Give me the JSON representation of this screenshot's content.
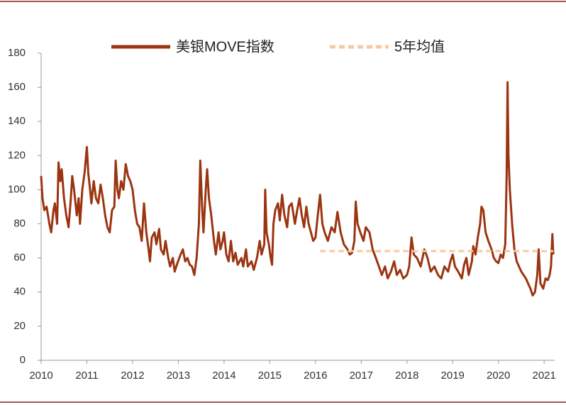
{
  "chart_data": {
    "type": "line",
    "xlim": [
      2010,
      2021.23
    ],
    "xticks": [
      2010,
      2011,
      2012,
      2013,
      2014,
      2015,
      2016,
      2017,
      2018,
      2019,
      2020,
      2021
    ],
    "ylim": [
      0,
      180
    ],
    "yticks": [
      0,
      20,
      40,
      60,
      80,
      100,
      120,
      140,
      160,
      180
    ],
    "legend": "top",
    "series": [
      {
        "name": "美银MOVE指数",
        "color": "#9b3410",
        "style": "solid",
        "x": [
          2010.0,
          2010.03,
          2010.07,
          2010.12,
          2010.18,
          2010.22,
          2010.27,
          2010.3,
          2010.35,
          2010.38,
          2010.42,
          2010.45,
          2010.5,
          2010.55,
          2010.6,
          2010.65,
          2010.68,
          2010.72,
          2010.78,
          2010.82,
          2010.85,
          2010.9,
          2010.95,
          2011.0,
          2011.03,
          2011.07,
          2011.1,
          2011.15,
          2011.2,
          2011.25,
          2011.3,
          2011.35,
          2011.4,
          2011.45,
          2011.5,
          2011.55,
          2011.6,
          2011.63,
          2011.67,
          2011.7,
          2011.75,
          2011.8,
          2011.85,
          2011.9,
          2011.95,
          2012.0,
          2012.05,
          2012.1,
          2012.15,
          2012.2,
          2012.25,
          2012.3,
          2012.35,
          2012.38,
          2012.42,
          2012.48,
          2012.52,
          2012.58,
          2012.62,
          2012.68,
          2012.72,
          2012.78,
          2012.82,
          2012.88,
          2012.92,
          2012.98,
          2013.05,
          2013.1,
          2013.15,
          2013.2,
          2013.25,
          2013.3,
          2013.35,
          2013.4,
          2013.45,
          2013.48,
          2013.52,
          2013.55,
          2013.6,
          2013.63,
          2013.67,
          2013.72,
          2013.78,
          2013.82,
          2013.88,
          2013.92,
          2013.97,
          2014.0,
          2014.05,
          2014.1,
          2014.15,
          2014.2,
          2014.25,
          2014.3,
          2014.38,
          2014.42,
          2014.48,
          2014.52,
          2014.6,
          2014.65,
          2014.72,
          2014.78,
          2014.82,
          2014.88,
          2014.9,
          2014.93,
          2014.98,
          2015.02,
          2015.05,
          2015.08,
          2015.12,
          2015.18,
          2015.22,
          2015.27,
          2015.32,
          2015.38,
          2015.42,
          2015.48,
          2015.55,
          2015.6,
          2015.65,
          2015.7,
          2015.75,
          2015.8,
          2015.85,
          2015.9,
          2015.95,
          2016.0,
          2016.05,
          2016.1,
          2016.15,
          2016.2,
          2016.27,
          2016.35,
          2016.42,
          2016.48,
          2016.55,
          2016.62,
          2016.7,
          2016.75,
          2016.8,
          2016.85,
          2016.88,
          2016.92,
          2016.98,
          2017.05,
          2017.1,
          2017.18,
          2017.25,
          2017.32,
          2017.4,
          2017.45,
          2017.52,
          2017.58,
          2017.65,
          2017.72,
          2017.78,
          2017.85,
          2017.92,
          2018.0,
          2018.05,
          2018.1,
          2018.15,
          2018.22,
          2018.3,
          2018.38,
          2018.45,
          2018.52,
          2018.6,
          2018.68,
          2018.75,
          2018.82,
          2018.9,
          2018.95,
          2019.0,
          2019.05,
          2019.12,
          2019.2,
          2019.25,
          2019.3,
          2019.35,
          2019.42,
          2019.45,
          2019.5,
          2019.55,
          2019.6,
          2019.63,
          2019.67,
          2019.72,
          2019.78,
          2019.85,
          2019.9,
          2019.95,
          2020.0,
          2020.05,
          2020.1,
          2020.15,
          2020.18,
          2020.2,
          2020.22,
          2020.25,
          2020.3,
          2020.35,
          2020.4,
          2020.45,
          2020.5,
          2020.55,
          2020.6,
          2020.65,
          2020.7,
          2020.75,
          2020.8,
          2020.85,
          2020.88,
          2020.92,
          2020.98,
          2021.03,
          2021.08,
          2021.12,
          2021.15,
          2021.18,
          2021.2
        ],
        "values": [
          108,
          95,
          88,
          90,
          80,
          75,
          88,
          92,
          80,
          116,
          105,
          112,
          95,
          85,
          78,
          95,
          108,
          100,
          85,
          95,
          80,
          100,
          110,
          125,
          110,
          100,
          92,
          105,
          95,
          92,
          103,
          95,
          85,
          78,
          75,
          88,
          90,
          117,
          100,
          95,
          105,
          100,
          115,
          108,
          105,
          100,
          88,
          80,
          78,
          70,
          92,
          75,
          65,
          58,
          72,
          75,
          68,
          77,
          65,
          62,
          70,
          60,
          55,
          60,
          52,
          57,
          62,
          65,
          58,
          60,
          56,
          55,
          50,
          60,
          80,
          117,
          90,
          75,
          100,
          112,
          95,
          85,
          70,
          62,
          75,
          65,
          70,
          75,
          62,
          58,
          70,
          58,
          63,
          56,
          60,
          55,
          65,
          55,
          58,
          53,
          60,
          70,
          62,
          68,
          100,
          75,
          68,
          60,
          56,
          80,
          88,
          92,
          82,
          97,
          85,
          78,
          90,
          92,
          80,
          88,
          95,
          85,
          78,
          90,
          80,
          75,
          70,
          72,
          85,
          97,
          80,
          75,
          70,
          78,
          75,
          87,
          75,
          68,
          65,
          62,
          63,
          70,
          93,
          80,
          75,
          70,
          78,
          75,
          65,
          60,
          54,
          50,
          55,
          48,
          52,
          58,
          50,
          53,
          48,
          50,
          55,
          72,
          62,
          60,
          55,
          65,
          60,
          52,
          55,
          50,
          48,
          55,
          52,
          58,
          62,
          55,
          52,
          48,
          56,
          60,
          50,
          58,
          67,
          62,
          72,
          80,
          90,
          88,
          75,
          70,
          65,
          60,
          58,
          57,
          62,
          60,
          68,
          108,
          163,
          120,
          100,
          80,
          65,
          58,
          55,
          52,
          50,
          48,
          45,
          42,
          38,
          40,
          50,
          65,
          45,
          42,
          48,
          47,
          50,
          55,
          74,
          62
        ]
      },
      {
        "name": "5年均值",
        "color": "#f8c9a0",
        "style": "dashed",
        "x": [
          2016.1,
          2021.2
        ],
        "values": [
          64,
          64
        ]
      }
    ]
  }
}
